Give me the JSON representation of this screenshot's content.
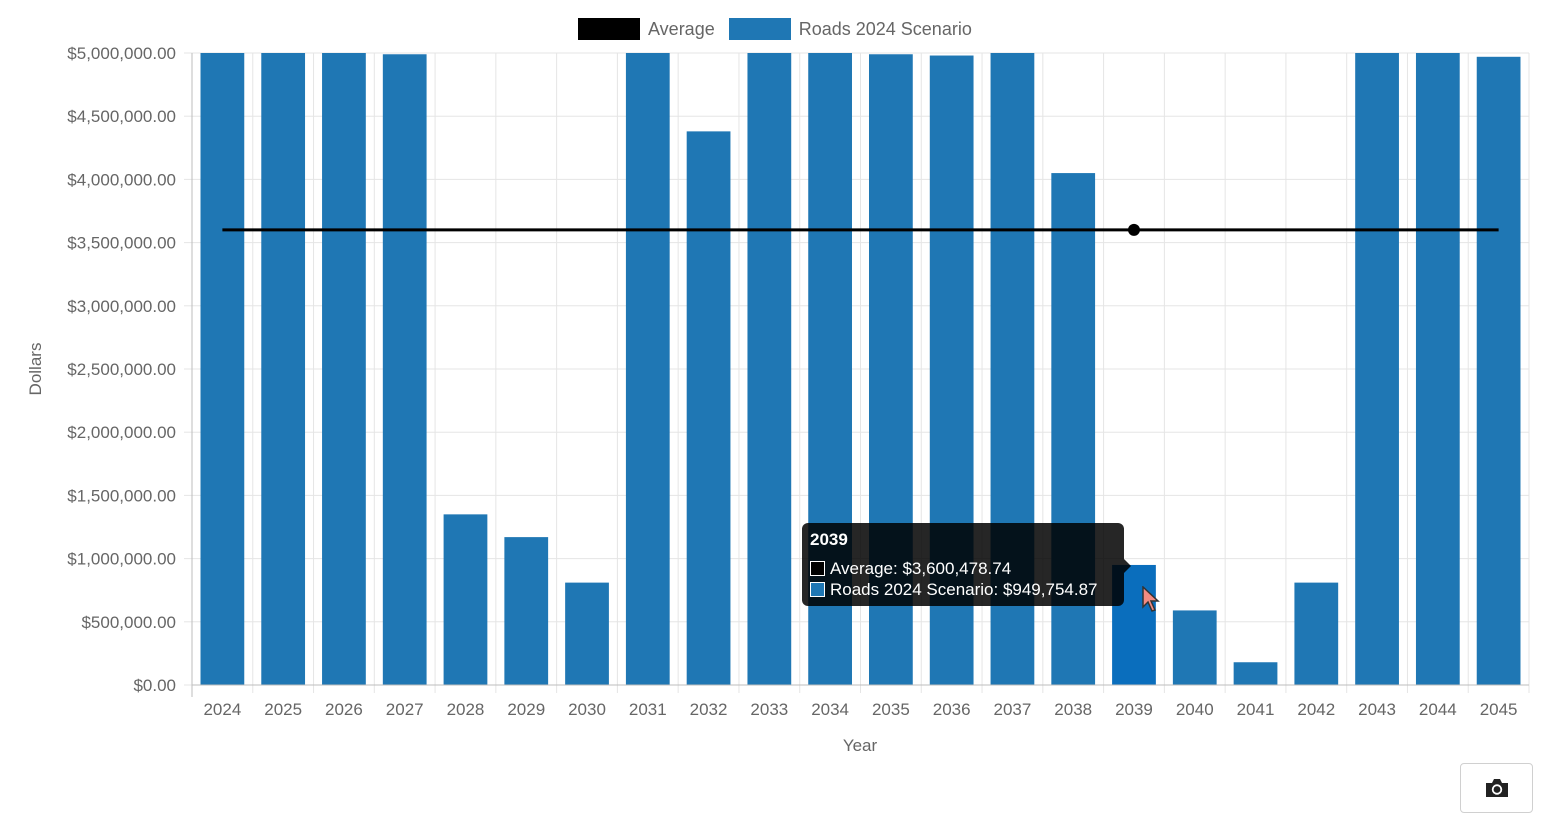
{
  "chart_data": {
    "type": "bar",
    "title": "",
    "xlabel": "Year",
    "ylabel": "Dollars",
    "ylim": [
      0,
      5000000
    ],
    "y_ticks": [
      "$0.00",
      "$500,000.00",
      "$1,000,000.00",
      "$1,500,000.00",
      "$2,000,000.00",
      "$2,500,000.00",
      "$3,000,000.00",
      "$3,500,000.00",
      "$4,000,000.00",
      "$4,500,000.00",
      "$5,000,000.00"
    ],
    "grid": true,
    "legend_position": "top",
    "categories": [
      "2024",
      "2025",
      "2026",
      "2027",
      "2028",
      "2029",
      "2030",
      "2031",
      "2032",
      "2033",
      "2034",
      "2035",
      "2036",
      "2037",
      "2038",
      "2039",
      "2040",
      "2041",
      "2042",
      "2043",
      "2044",
      "2045"
    ],
    "series": [
      {
        "name": "Roads 2024 Scenario",
        "type": "bar",
        "color": "#1f77b4",
        "values": [
          5000000,
          5000000,
          5000000,
          4990000,
          1350000,
          1170000,
          810000,
          5000000,
          4380000,
          5000000,
          5000000,
          4990000,
          4980000,
          5000000,
          4050000,
          949754.87,
          590000,
          180000,
          810000,
          5000000,
          5000000,
          4970000
        ]
      },
      {
        "name": "Average",
        "type": "line",
        "color": "#000000",
        "values": [
          3600478.74,
          3600478.74,
          3600478.74,
          3600478.74,
          3600478.74,
          3600478.74,
          3600478.74,
          3600478.74,
          3600478.74,
          3600478.74,
          3600478.74,
          3600478.74,
          3600478.74,
          3600478.74,
          3600478.74,
          3600478.74,
          3600478.74,
          3600478.74,
          3600478.74,
          3600478.74,
          3600478.74,
          3600478.74
        ]
      }
    ],
    "highlight_index": 15,
    "highlight_color": "#0a6ebd"
  },
  "legend": {
    "average_label": "Average",
    "roads_label": "Roads 2024 Scenario"
  },
  "tooltip": {
    "title": "2039",
    "average_line": "Average: $3,600,478.74",
    "roads_line": "Roads 2024 Scenario: $949,754.87"
  },
  "toolbar": {
    "camera_icon": "camera-icon"
  }
}
